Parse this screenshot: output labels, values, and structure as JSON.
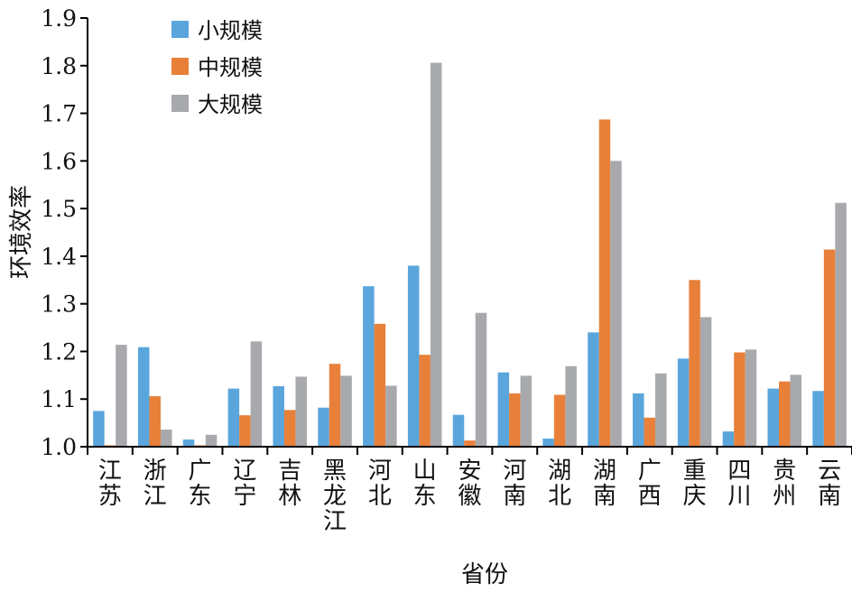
{
  "chart_data": {
    "type": "bar",
    "title": "",
    "ylabel": "环境效率",
    "xlabel": "省份",
    "ylim": [
      1.0,
      1.9
    ],
    "yticks": [
      "1.0",
      "1.1",
      "1.2",
      "1.3",
      "1.4",
      "1.5",
      "1.6",
      "1.7",
      "1.8",
      "1.9"
    ],
    "categories": [
      "江苏",
      "浙江",
      "广东",
      "辽宁",
      "吉林",
      "黑龙江",
      "河北",
      "山东",
      "安徽",
      "河南",
      "湖北",
      "湖南",
      "广西",
      "重庆",
      "四川",
      "贵州",
      "云南"
    ],
    "series": [
      {
        "name": "小规模",
        "color": "#5aa5dc",
        "values": [
          1.075,
          1.209,
          1.015,
          1.122,
          1.127,
          1.082,
          1.337,
          1.38,
          1.067,
          1.156,
          1.017,
          1.24,
          1.112,
          1.185,
          1.032,
          1.122,
          1.117
        ]
      },
      {
        "name": "中规模",
        "color": "#e8803a",
        "values": [
          1.003,
          1.106,
          1.003,
          1.066,
          1.077,
          1.174,
          1.258,
          1.193,
          1.013,
          1.112,
          1.109,
          1.687,
          1.061,
          1.35,
          1.198,
          1.137,
          1.414
        ]
      },
      {
        "name": "大规模",
        "color": "#a7a9ac",
        "values": [
          1.214,
          1.036,
          1.025,
          1.221,
          1.147,
          1.149,
          1.128,
          1.806,
          1.281,
          1.149,
          1.169,
          1.6,
          1.154,
          1.272,
          1.204,
          1.151,
          1.512
        ]
      }
    ],
    "legend_position": "top-left",
    "grid": false
  }
}
